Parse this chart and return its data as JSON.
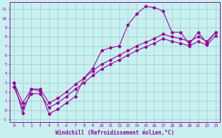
{
  "xlabel": "Windchill (Refroidissement éolien,°C)",
  "ylabel": "",
  "bg_color": "#c8f0f0",
  "line_color": "#990099",
  "grid_color": "#99cccc",
  "xlim": [
    -0.5,
    23.5
  ],
  "ylim": [
    -1.3,
    11.8
  ],
  "xticks": [
    0,
    1,
    2,
    3,
    4,
    5,
    6,
    7,
    8,
    9,
    10,
    11,
    12,
    13,
    14,
    15,
    16,
    17,
    18,
    19,
    20,
    21,
    22,
    23
  ],
  "yticks": [
    -1,
    0,
    1,
    2,
    3,
    4,
    5,
    6,
    7,
    8,
    9,
    10,
    11
  ],
  "line1_x": [
    0,
    1,
    2,
    3,
    4,
    5,
    6,
    7,
    8,
    9,
    10,
    11,
    12,
    13,
    14,
    15,
    16,
    17,
    18,
    19,
    20,
    21,
    22,
    23
  ],
  "line1_y": [
    3.0,
    -0.3,
    2.3,
    2.1,
    -0.4,
    0.1,
    0.8,
    1.5,
    3.5,
    4.6,
    6.5,
    6.8,
    7.0,
    9.3,
    10.5,
    11.3,
    11.2,
    10.8,
    8.5,
    8.5,
    7.2,
    8.5,
    7.3,
    8.5
  ],
  "line2_x": [
    0,
    1,
    2,
    3,
    4,
    5,
    6,
    7,
    8,
    9,
    10,
    11,
    12,
    13,
    14,
    15,
    16,
    17,
    18,
    19,
    20,
    21,
    22,
    23
  ],
  "line2_y": [
    3.0,
    0.8,
    2.3,
    2.3,
    0.8,
    1.3,
    2.0,
    2.8,
    3.5,
    4.3,
    5.0,
    5.5,
    6.0,
    6.5,
    7.0,
    7.4,
    7.8,
    8.3,
    8.0,
    7.8,
    7.5,
    8.0,
    7.5,
    8.5
  ],
  "line3_x": [
    0,
    1,
    2,
    3,
    4,
    5,
    6,
    7,
    8,
    9,
    10,
    11,
    12,
    13,
    14,
    15,
    16,
    17,
    18,
    19,
    20,
    21,
    22,
    23
  ],
  "line3_y": [
    2.5,
    0.3,
    1.8,
    1.8,
    0.3,
    0.8,
    1.5,
    2.3,
    3.0,
    3.8,
    4.5,
    5.0,
    5.5,
    6.0,
    6.5,
    6.9,
    7.3,
    7.8,
    7.5,
    7.3,
    7.0,
    7.5,
    7.1,
    8.1
  ],
  "marker": "D",
  "marker_size": 2.0,
  "line_width": 0.8,
  "tick_fontsize": 4.5,
  "label_fontsize": 5.5
}
